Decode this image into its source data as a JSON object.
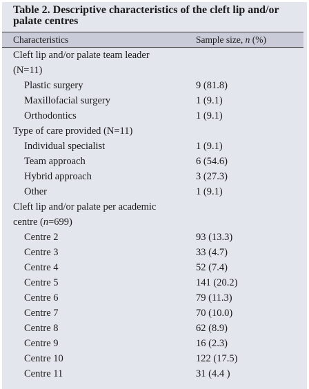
{
  "table": {
    "title_line1": "Table 2. Descriptive characteristics of the cleft lip and/or",
    "title_line2": "palate centres",
    "headers": {
      "characteristics": "Characteristics",
      "sample_size_pre": "Sample size, ",
      "sample_size_n": "n",
      "sample_size_post": " (%)"
    },
    "sections": {
      "team_leader": {
        "label": "Cleft lip and/or palate team leader",
        "sub_label": "(N=11)",
        "rows": [
          {
            "label": "Plastic surgery",
            "value": "9 (81.8)"
          },
          {
            "label": "Maxillofacial surgery",
            "value": "1 (9.1)"
          },
          {
            "label": "Orthodontics",
            "value": "1 (9.1)"
          }
        ]
      },
      "care_type": {
        "label": "Type of care provided (N=11)",
        "rows": [
          {
            "label": "Individual specialist",
            "value": "1 (9.1)"
          },
          {
            "label": "Team approach",
            "value": "6 (54.6)"
          },
          {
            "label": "Hybrid approach",
            "value": "3 (27.3)"
          },
          {
            "label": "Other",
            "value": "1 (9.1)"
          }
        ]
      },
      "per_centre": {
        "label": "Cleft lip and/or palate per academic",
        "sub_label_pre": "centre (",
        "sub_label_n": "n",
        "sub_label_post": "=699)",
        "rows": [
          {
            "label": "Centre 2",
            "value": "93 (13.3)"
          },
          {
            "label": "Centre 3",
            "value": "33 (4.7)"
          },
          {
            "label": "Centre 4",
            "value": "52 (7.4)"
          },
          {
            "label": "Centre 5",
            "value": "141 (20.2)"
          },
          {
            "label": "Centre 6",
            "value": "79 (11.3)"
          },
          {
            "label": "Centre 7",
            "value": "70 (10.0)"
          },
          {
            "label": "Centre 8",
            "value": "62 (8.9)"
          },
          {
            "label": "Centre 9",
            "value": "16 (2.3)"
          },
          {
            "label": "Centre 10",
            "value": "122 (17.5)"
          },
          {
            "label": "Centre 11",
            "value": "31 (4.4 )"
          }
        ]
      }
    }
  }
}
